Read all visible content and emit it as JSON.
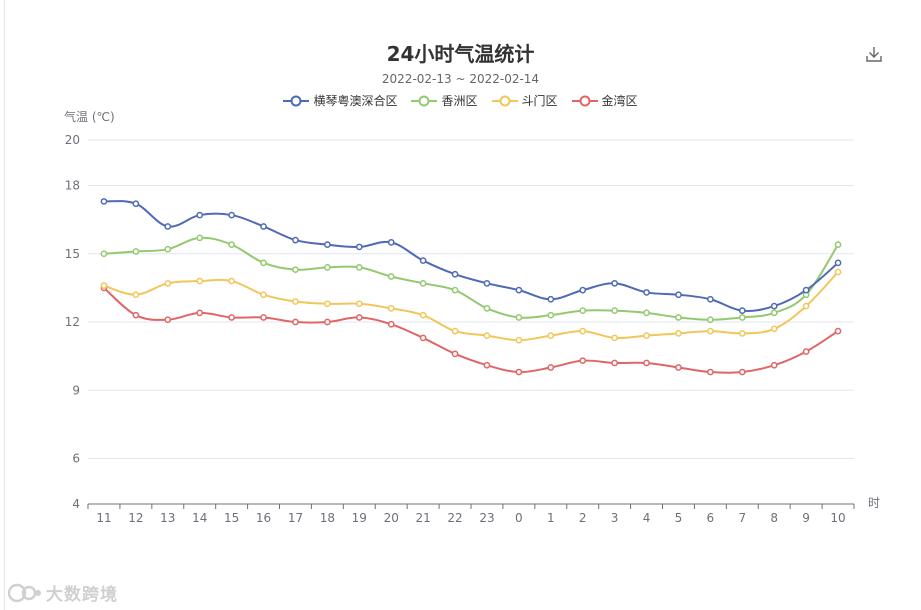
{
  "chart_data": {
    "type": "line",
    "title": "24小时气温统计",
    "subtitle": "2022-02-13 ~ 2022-02-14",
    "ylabel": "气温 (℃)",
    "xlabel": "时",
    "ylim": [
      4,
      20
    ],
    "yticks": [
      4,
      6,
      9,
      12,
      15,
      18,
      20
    ],
    "grid": true,
    "smooth": true,
    "legend_position": "top-center",
    "categories": [
      "11",
      "12",
      "13",
      "14",
      "15",
      "16",
      "17",
      "18",
      "19",
      "20",
      "21",
      "22",
      "23",
      "0",
      "1",
      "2",
      "3",
      "4",
      "5",
      "6",
      "7",
      "8",
      "9",
      "10"
    ],
    "series": [
      {
        "name": "横琴粤澳深合区",
        "color": "#4e6ab5",
        "values": [
          17.3,
          17.2,
          16.2,
          16.7,
          16.7,
          16.2,
          15.6,
          15.4,
          15.3,
          15.5,
          14.7,
          14.1,
          13.7,
          13.4,
          13.0,
          13.4,
          13.7,
          13.3,
          13.2,
          13.0,
          12.5,
          12.7,
          13.4,
          14.6
        ]
      },
      {
        "name": "香洲区",
        "color": "#93c96f",
        "values": [
          15.0,
          15.1,
          15.2,
          15.7,
          15.4,
          14.6,
          14.3,
          14.4,
          14.4,
          14.0,
          13.7,
          13.4,
          12.6,
          12.2,
          12.3,
          12.5,
          12.5,
          12.4,
          12.2,
          12.1,
          12.2,
          12.4,
          13.2,
          15.4
        ]
      },
      {
        "name": "斗门区",
        "color": "#f1c65a",
        "values": [
          13.6,
          13.2,
          13.7,
          13.8,
          13.8,
          13.2,
          12.9,
          12.8,
          12.8,
          12.6,
          12.3,
          11.6,
          11.4,
          11.2,
          11.4,
          11.6,
          11.3,
          11.4,
          11.5,
          11.6,
          11.5,
          11.7,
          12.7,
          14.2
        ]
      },
      {
        "name": "金湾区",
        "color": "#e06666",
        "values": [
          13.5,
          12.3,
          12.1,
          12.4,
          12.2,
          12.2,
          12.0,
          12.0,
          12.2,
          11.9,
          11.3,
          10.6,
          10.1,
          9.8,
          10.0,
          10.3,
          10.2,
          10.2,
          10.0,
          9.8,
          9.8,
          10.1,
          10.7,
          11.6
        ]
      }
    ]
  },
  "watermark": "大数跨境",
  "icons": {
    "download": "download-icon",
    "watermark_logo": "logo-icon"
  }
}
